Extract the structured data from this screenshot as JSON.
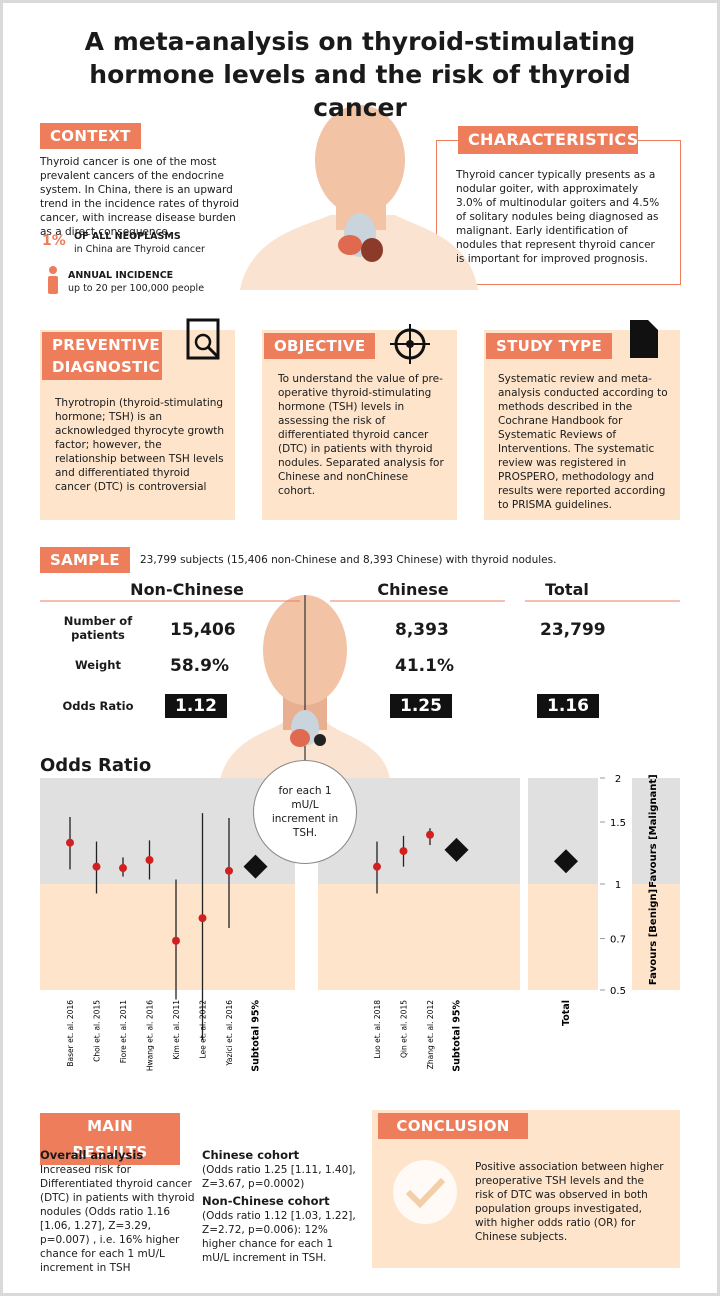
{
  "title": "A meta-analysis on thyroid-stimulating hormone levels and the risk of thyroid cancer",
  "context": {
    "heading": "CONTEXT",
    "text": "Thyroid cancer is one of the most prevalent cancers of the endocrine system. In China, there is an upward trend in the incidence rates of thyroid cancer, with increase disease burden as a direct consequence.",
    "stat_value": "1%",
    "stat_label": "OF ALL NEOPLASMS",
    "stat_sub": "in China are Thyroid cancer",
    "incidence_label": "ANNUAL INCIDENCE",
    "incidence_sub": "up to 20 per 100,000 people"
  },
  "characteristics": {
    "heading": "CHARACTERISTICS",
    "text": "Thyroid cancer typically presents as a nodular goiter, with approximately 3.0% of multinodular goiters and 4.5% of solitary nodules being diagnosed as malignant. Early identification of nodules that represent thyroid cancer is important for improved prognosis."
  },
  "preventive": {
    "heading": "PREVENTIVE DIAGNOSTIC",
    "text": "Thyrotropin (thyroid-stimulating hormone; TSH) is an acknowledged thyrocyte growth factor; however, the relationship between TSH levels and differentiated thyroid cancer (DTC) is controversial"
  },
  "objective": {
    "heading": "OBJECTIVE",
    "text": "To understand the value of pre-operative thyroid-stimulating hormone (TSH) levels in assessing the risk of differentiated thyroid cancer (DTC) in patients with thyroid nodules. Separated analysis for Chinese and nonChinese cohort."
  },
  "study_type": {
    "heading": "STUDY TYPE",
    "text": "Systematic review and meta-analysis conducted according to methods described in the Cochrane Handbook for Systematic Reviews of Interventions. The systematic review was registered in PROSPERO, methodology and results were reported according to PRISMA guidelines."
  },
  "sample": {
    "heading": "SAMPLE",
    "text": "23,799 subjects (15,406 non-Chinese and 8,393 Chinese) with thyroid nodules.",
    "columns": [
      "Non-Chinese",
      "Chinese",
      "Total"
    ],
    "rows": [
      {
        "label": "Number of patients",
        "values": [
          "15,406",
          "8,393",
          "23,799"
        ]
      },
      {
        "label": "Weight",
        "values": [
          "58.9%",
          "41.1%"
        ]
      },
      {
        "label": "Odds Ratio",
        "values": [
          "1.12",
          "1.25",
          "1.16"
        ]
      }
    ]
  },
  "forest": {
    "title": "Odds Ratio",
    "note": "for each 1 mU/L increment in TSH.",
    "log_scale": true,
    "ylim": [
      0.5,
      2
    ],
    "yticks": [
      2,
      1.5,
      1,
      0.7,
      0.5
    ],
    "favours_upper": "Favours [Malignant]",
    "favours_lower": "Favours [Benign]",
    "groups": [
      {
        "studies": [
          {
            "name": "Baser et. al. 2016",
            "value": 1.31,
            "ci": [
              1.1,
              1.55
            ]
          },
          {
            "name": "Choi et. al. 2015",
            "value": 1.12,
            "ci": [
              0.94,
              1.32
            ]
          },
          {
            "name": "Fiore et. al. 2011",
            "value": 1.11,
            "ci": [
              1.05,
              1.19
            ]
          },
          {
            "name": "Hwang et. al. 2016",
            "value": 1.17,
            "ci": [
              1.03,
              1.33
            ]
          },
          {
            "name": "Kim et. al. 2011",
            "value": 0.69,
            "ci": [
              0.47,
              1.03
            ]
          },
          {
            "name": "Lee et. al. 2012",
            "value": 0.8,
            "ci": [
              0.36,
              1.59
            ]
          },
          {
            "name": "Yazici et. al. 2016",
            "value": 1.09,
            "ci": [
              0.75,
              1.54
            ]
          }
        ],
        "subtotal": {
          "label": "Subtotal 95%",
          "value": 1.12
        }
      },
      {
        "studies": [
          {
            "name": "Luo et. al. 2018",
            "value": 1.12,
            "ci": [
              0.94,
              1.32
            ]
          },
          {
            "name": "Qin et. al. 2015",
            "value": 1.24,
            "ci": [
              1.12,
              1.37
            ]
          },
          {
            "name": "Zhang et. al. 2012",
            "value": 1.38,
            "ci": [
              1.29,
              1.44
            ]
          }
        ],
        "subtotal": {
          "label": "Subtotal 95%",
          "value": 1.25
        }
      }
    ],
    "total": {
      "label": "Total",
      "value": 1.16
    }
  },
  "main_results": {
    "heading": "MAIN RESULTS",
    "overall_heading": "Overall analysis",
    "overall_text": "Increased risk for Differentiated thyroid cancer (DTC) in patients with thyroid nodules (Odds ratio 1.16 [1.06, 1.27], Z=3.29, p=0.007) , i.e. 16% higher chance for each 1 mU/L increment in TSH",
    "chinese_heading": "Chinese cohort",
    "chinese_text": "(Odds ratio 1.25 [1.11, 1.40], Z=3.67, p=0.0002)",
    "nonchinese_heading": "Non-Chinese cohort",
    "nonchinese_text": "(Odds ratio 1.12 [1.03, 1.22], Z=2.72, p=0.006): 12% higher chance for each 1 mU/L increment in TSH."
  },
  "conclusion": {
    "heading": "CONCLUSION",
    "text": "Positive association between higher preoperative TSH levels and the risk of DTC was observed in both population groups investigated, with higher odds ratio (OR) for Chinese subjects."
  }
}
